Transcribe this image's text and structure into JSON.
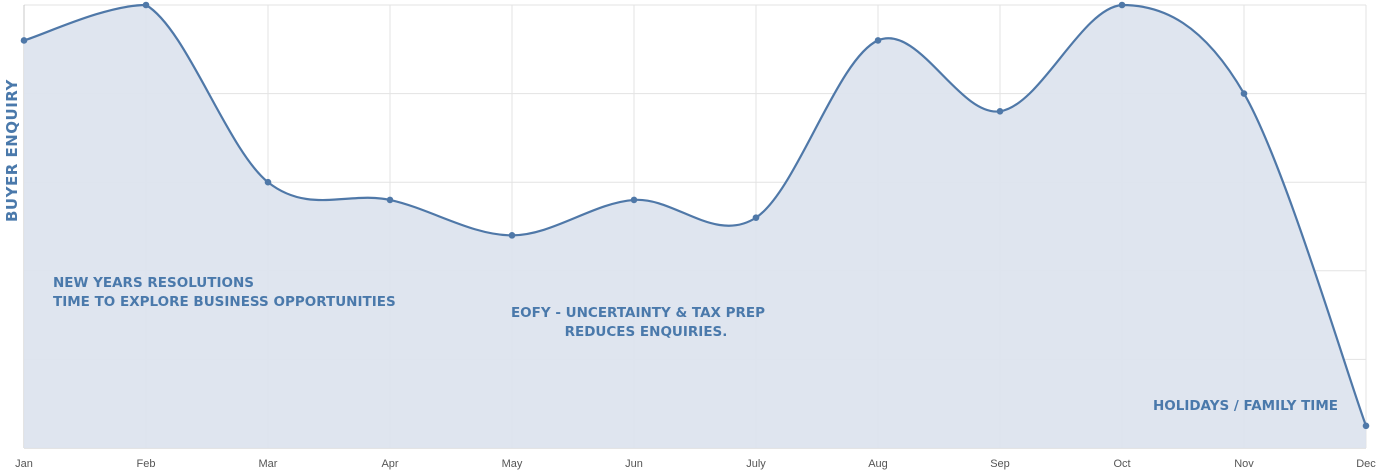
{
  "chart_data": {
    "type": "area",
    "title": "",
    "xlabel": "",
    "ylabel": "BUYER ENQUIRY",
    "categories": [
      "Jan",
      "Feb",
      "Mar",
      "Apr",
      "May",
      "Jun",
      "July",
      "Aug",
      "Sep",
      "Oct",
      "Nov",
      "Dec"
    ],
    "series": [
      {
        "values": [
          92,
          100,
          60,
          56,
          48,
          56,
          52,
          92,
          76,
          100,
          80,
          5
        ]
      }
    ],
    "ylim": [
      0,
      100
    ],
    "grid": true,
    "y_tick_labels": false,
    "colors": {
      "line": "#4f78a8",
      "fill": "#dde4ee",
      "grid": "#e3e3e3",
      "text": "#4a79ab"
    },
    "annotations": [
      {
        "lines": [
          "NEW YEARS RESOLUTIONS",
          "TIME TO EXPLORE BUSINESS OPPORTUNITIES"
        ]
      },
      {
        "lines": [
          "EOFY - UNCERTAINTY & TAX PREP",
          "REDUCES ENQUIRIES."
        ]
      },
      {
        "lines": [
          "HOLIDAYS / FAMILY TIME"
        ]
      }
    ]
  }
}
